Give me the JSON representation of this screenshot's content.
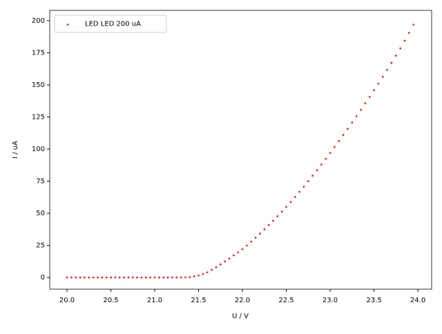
{
  "chart_data": {
    "type": "scatter",
    "xlabel": "U / V",
    "ylabel": "I / uA",
    "legend": "upper left",
    "grid": false,
    "xlim": [
      19.803,
      24.157
    ],
    "ylim": [
      -9.1,
      208.1
    ],
    "xticks": [
      {
        "value": 20.0,
        "label": "20.0"
      },
      {
        "value": 20.5,
        "label": "20.5"
      },
      {
        "value": 21.0,
        "label": "21.0"
      },
      {
        "value": 21.5,
        "label": "21.5"
      },
      {
        "value": 22.0,
        "label": "22.0"
      },
      {
        "value": 22.5,
        "label": "22.5"
      },
      {
        "value": 23.0,
        "label": "23.0"
      },
      {
        "value": 23.5,
        "label": "23.5"
      },
      {
        "value": 24.0,
        "label": "24.0"
      }
    ],
    "yticks": [
      0,
      25,
      50,
      75,
      100,
      125,
      150,
      175,
      200
    ],
    "series": [
      {
        "name": "LED LED 200 uA",
        "color": "#ff0000",
        "x": [
          20.0,
          20.05,
          20.1,
          20.15,
          20.2,
          20.25,
          20.3,
          20.35,
          20.4,
          20.45,
          20.5,
          20.55,
          20.6,
          20.65,
          20.7,
          20.75,
          20.8,
          20.85,
          20.9,
          20.95,
          21.0,
          21.05,
          21.1,
          21.15,
          21.2,
          21.25,
          21.3,
          21.35,
          21.4,
          21.45,
          21.5,
          21.55,
          21.6,
          21.65,
          21.7,
          21.75,
          21.8,
          21.85,
          21.9,
          21.95,
          22.0,
          22.05,
          22.1,
          22.15,
          22.2,
          22.25,
          22.3,
          22.35,
          22.4,
          22.45,
          22.5,
          22.55,
          22.6,
          22.65,
          22.7,
          22.75,
          22.8,
          22.85,
          22.9,
          22.95,
          23.0,
          23.05,
          23.1,
          23.15,
          23.2,
          23.25,
          23.3,
          23.35,
          23.4,
          23.45,
          23.5,
          23.55,
          23.6,
          23.65,
          23.7,
          23.75,
          23.8,
          23.85,
          23.9,
          23.95
        ],
        "values": [
          0,
          0,
          0,
          0,
          0,
          0,
          0,
          0,
          0,
          0,
          0,
          0,
          0,
          0,
          0,
          0,
          0,
          0,
          0,
          0,
          0,
          0,
          0,
          0,
          0,
          0,
          0,
          0.1,
          0.3,
          0.8,
          1.5,
          2.6,
          4.0,
          5.9,
          8.0,
          10.2,
          12.5,
          14.7,
          17.2,
          19.6,
          22.0,
          24.9,
          27.9,
          31.0,
          34.2,
          37.5,
          40.8,
          44.2,
          47.7,
          51.3,
          55.0,
          58.8,
          62.7,
          66.7,
          70.8,
          75.0,
          79.3,
          83.6,
          88.0,
          92.5,
          97.0,
          101.6,
          106.3,
          111.0,
          115.8,
          120.7,
          125.6,
          130.6,
          135.6,
          140.7,
          145.9,
          151.1,
          156.4,
          161.8,
          167.2,
          172.8,
          178.5,
          184.5,
          190.6,
          197.0
        ]
      }
    ]
  }
}
